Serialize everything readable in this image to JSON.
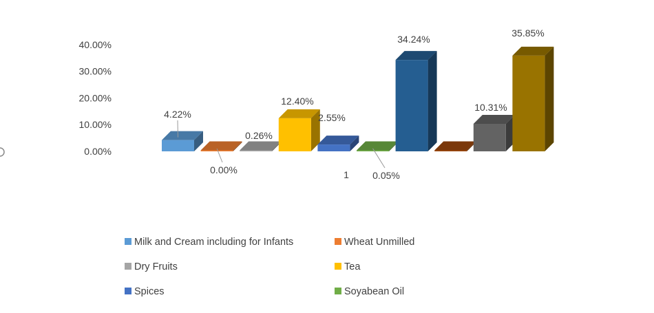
{
  "chart_data": {
    "type": "bar",
    "style": "3d-clustered-column",
    "categories": [
      "1"
    ],
    "ylim": [
      0,
      40
    ],
    "yticks": [
      "0.00%",
      "10.00%",
      "20.00%",
      "30.00%",
      "40.00%"
    ],
    "grid": false,
    "legend_position": "bottom",
    "series": [
      {
        "name": "Milk and Cream including for Infants",
        "value": 4.22,
        "label": "4.22%",
        "color": "#5b9bd5"
      },
      {
        "name": "Wheat Unmilled",
        "value": 0.0,
        "label": "0.00%",
        "color": "#ed7d31"
      },
      {
        "name": "Dry Fruits",
        "value": 0.26,
        "label": "0.26%",
        "color": "#a5a5a5"
      },
      {
        "name": "Tea",
        "value": 12.4,
        "label": "12.40%",
        "color": "#ffc000"
      },
      {
        "name": "Spices",
        "value": 2.55,
        "label": "2.55%",
        "color": "#4472c4"
      },
      {
        "name": "Soyabean Oil",
        "value": 0.05,
        "label": "0.05%",
        "color": "#70ad47"
      },
      {
        "value": 34.24,
        "label": "34.24%",
        "color": "#255e91"
      },
      {
        "value": 0.0,
        "label": "",
        "color": "#9e480e"
      },
      {
        "value": 10.31,
        "label": "10.31%",
        "color": "#636363"
      },
      {
        "value": 35.85,
        "label": "35.85%",
        "color": "#997300"
      }
    ]
  }
}
